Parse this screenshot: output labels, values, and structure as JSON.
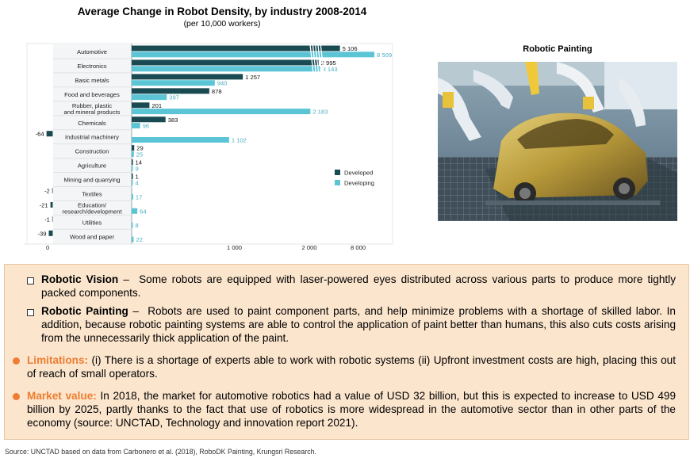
{
  "chart_data": {
    "type": "bar",
    "orientation": "horizontal",
    "title": "Average Change in Robot Density, by industry 2008-2014",
    "subtitle": "(per 10,000 workers)",
    "categories": [
      "Automotive",
      "Electronics",
      "Basic metals",
      "Food and beverages",
      "Rubber, plastic and mineral products",
      "Chemicals",
      "Industrial machinery",
      "Construction",
      "Agriculture",
      "Mining and quarrying",
      "Textiles",
      "Education/ research/development",
      "Utilities",
      "Wood and paper"
    ],
    "category_lines": [
      [
        "Automotive"
      ],
      [
        "Electronics"
      ],
      [
        "Basic metals"
      ],
      [
        "Food and beverages"
      ],
      [
        "Rubber, plastic",
        "and mineral products"
      ],
      [
        "Chemicals"
      ],
      [
        "Industrial machinery"
      ],
      [
        "Construction"
      ],
      [
        "Agriculture"
      ],
      [
        "Mining and quarrying"
      ],
      [
        "Textiles"
      ],
      [
        "Education/",
        "research/development"
      ],
      [
        "Utilities"
      ],
      [
        "Wood and paper"
      ]
    ],
    "series": [
      {
        "name": "Developed",
        "color": "#1a4a52",
        "values": [
          5106,
          2995,
          1257,
          878,
          201,
          383,
          -64,
          29,
          14,
          1,
          -2,
          -21,
          -1,
          -39
        ],
        "labels": [
          "5 106",
          "2 995",
          "1 257",
          "878",
          "201",
          "383",
          "-64",
          "29",
          "14",
          "1",
          "-2",
          "-21",
          "-1",
          "-39"
        ]
      },
      {
        "name": "Developing",
        "color": "#5bc5d6",
        "values": [
          8509,
          3143,
          940,
          397,
          2183,
          96,
          1102,
          25,
          9,
          4,
          17,
          64,
          8,
          22
        ],
        "labels": [
          "8 509",
          "3 143",
          "940",
          "397",
          "2 183",
          "96",
          "1 102",
          "25",
          "9",
          "4",
          "17",
          "64",
          "8",
          "22"
        ]
      }
    ],
    "x_ticks": [
      0,
      1000,
      2000,
      8000
    ],
    "x_tick_labels": [
      "0",
      "1 000",
      "2 000",
      "8 000"
    ],
    "x_axis_break": "between 2 000 and 8 000",
    "legend_position": "right"
  },
  "photo": {
    "title": "Robotic Painting",
    "subject": "robotic arms painting a car body on a production line"
  },
  "bullets": [
    {
      "kind": "square",
      "heading": "Robotic Vision",
      "separator": " –  ",
      "text": "Some robots are equipped with laser-powered eyes distributed across various parts to produce more tightly packed components."
    },
    {
      "kind": "square",
      "heading": "Robotic Painting",
      "separator": " –  ",
      "text": "Robots are used to paint component parts, and help minimize problems with a shortage of skilled labor. In addition, because robotic painting systems are able to control the application of paint better than humans, this also cuts costs arising from the unnecessarily thick application of the paint."
    },
    {
      "kind": "dot",
      "heading": "Limitations:",
      "separator": " ",
      "text": "(i) There is a shortage of experts able to work with robotic systems (ii) Upfront investment costs are high, placing this out of reach of small operators."
    },
    {
      "kind": "dot",
      "heading": "Market value:",
      "separator": " ",
      "text": "In 2018, the market for automotive robotics had a value of USD 32 billion, but this is expected to increase to USD 499 billion by 2025, partly thanks to the fact that use of robotics is more widespread in the automotive sector than in other parts of the economy (source: UNCTAD, Technology and innovation report 2021)."
    }
  ],
  "source": "Source: UNCTAD based on data from Carbonero et al. (2018), RoboDK Painting,  Krungsri Research.",
  "colors": {
    "accent": "#ed7d31",
    "panel_bg": "#fbe5cd",
    "developed": "#1a4a52",
    "developing": "#5bc5d6"
  }
}
